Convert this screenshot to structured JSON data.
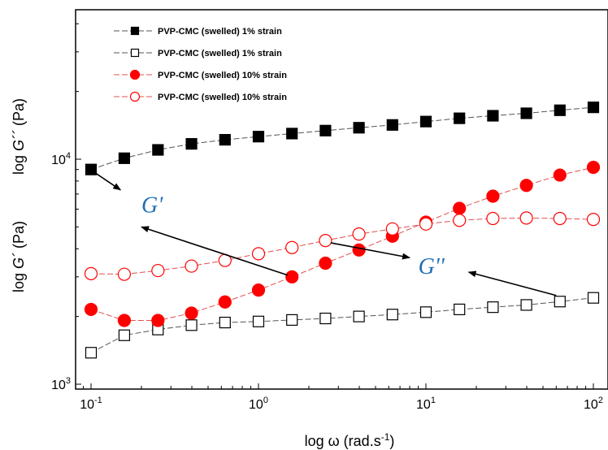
{
  "chart_data": {
    "type": "scatter",
    "x_scale": "log",
    "y_scale": "log",
    "xlim": [
      0.08,
      110
    ],
    "ylim": [
      1000,
      60000
    ],
    "grid": false,
    "legend_placement": "top-left",
    "xlabel_main": "log ω (rad.s",
    "xlabel_sup": "-1",
    "xlabel_end": ")",
    "ylabel_upper_pre": "log ",
    "ylabel_upper_sym": "G´´",
    "ylabel_upper_post": " (Pa)",
    "ylabel_lower_pre": "log ",
    "ylabel_lower_sym": "G´",
    "ylabel_lower_post": " (Pa)",
    "x_ticks": [
      {
        "value": 0.1,
        "base": "10",
        "exp": "-1"
      },
      {
        "value": 1,
        "base": "10",
        "exp": "0"
      },
      {
        "value": 10,
        "base": "10",
        "exp": "1"
      },
      {
        "value": 100,
        "base": "10",
        "exp": "2"
      }
    ],
    "y_ticks": [
      {
        "value": 1000,
        "base": "10",
        "exp": "3"
      },
      {
        "value": 10000,
        "base": "10",
        "exp": "4"
      }
    ],
    "x": [
      0.1,
      0.158,
      0.251,
      0.398,
      0.631,
      1.0,
      1.585,
      2.512,
      3.981,
      6.31,
      10,
      15.85,
      25.12,
      39.81,
      63.1,
      100
    ],
    "series": [
      {
        "name": "PVP-CMC (swelled) 1% strain",
        "marker": "square",
        "filled": true,
        "color": "#000000",
        "line_color": "#555555",
        "values": [
          9000,
          10100,
          11000,
          11700,
          12200,
          12600,
          13000,
          13400,
          13800,
          14200,
          14700,
          15200,
          15600,
          16000,
          16500,
          17000
        ]
      },
      {
        "name": "PVP-CMC (swelled) 1% strain",
        "marker": "square",
        "filled": false,
        "color": "#000000",
        "line_color": "#555555",
        "values": [
          1380,
          1650,
          1750,
          1830,
          1880,
          1900,
          1930,
          1960,
          2000,
          2040,
          2090,
          2150,
          2200,
          2250,
          2330,
          2420
        ]
      },
      {
        "name": "PVP-CMC (swelled) 10% strain",
        "marker": "circle",
        "filled": true,
        "color": "#ff0000",
        "line_color": "#e05050",
        "values": [
          2150,
          1920,
          1920,
          2070,
          2320,
          2620,
          3000,
          3450,
          3950,
          4550,
          5250,
          6050,
          6850,
          7650,
          8500,
          9200
        ]
      },
      {
        "name": "PVP-CMC (swelled) 10% strain",
        "marker": "circle",
        "filled": false,
        "color": "#ff0000",
        "line_color": "#e05050",
        "values": [
          3100,
          3080,
          3200,
          3350,
          3550,
          3800,
          4050,
          4350,
          4650,
          4900,
          5150,
          5350,
          5450,
          5480,
          5450,
          5400
        ]
      }
    ],
    "annotations": [
      {
        "text": "G'",
        "x": 0.2,
        "y": 5800
      },
      {
        "text": "G''",
        "x": 9.0,
        "y": 3100
      }
    ],
    "arrows": [
      {
        "from": [
          0.1,
          8950
        ],
        "to": [
          0.15,
          7300
        ]
      },
      {
        "from": [
          1.5,
          3050
        ],
        "to": [
          0.2,
          5000
        ]
      },
      {
        "from": [
          2.7,
          4250
        ],
        "to": [
          8.0,
          3650
        ]
      },
      {
        "from": [
          60,
          2480
        ],
        "to": [
          18,
          3150
        ]
      }
    ]
  }
}
